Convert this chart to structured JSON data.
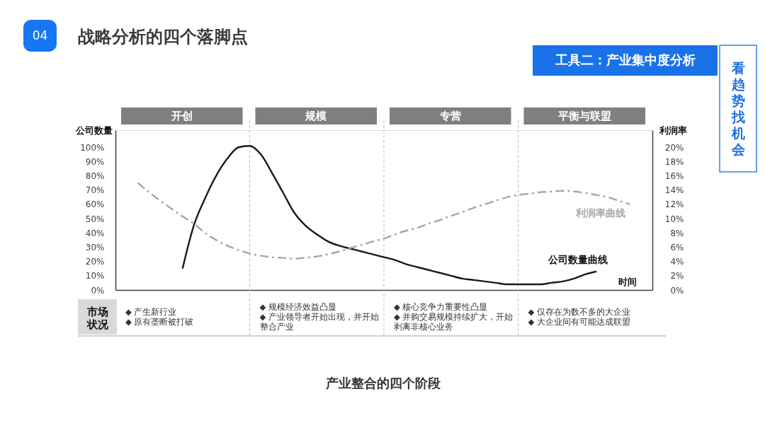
{
  "chart_data": {
    "type": "line",
    "title": "战略分析的四个落脚点",
    "xlabel": "时间",
    "ylabel": "公司数量",
    "y2label": "利润率",
    "grid": "x",
    "categories": [
      null,
      null,
      null,
      null,
      null,
      null,
      null,
      null,
      null,
      null,
      null,
      null,
      null,
      null,
      null,
      null,
      null,
      null,
      null,
      null,
      null,
      null,
      null,
      null,
      null,
      null,
      null,
      null,
      null,
      null,
      null,
      null,
      null,
      null,
      null,
      null,
      null,
      null,
      null,
      null,
      null,
      null,
      null,
      null,
      null,
      null,
      null,
      null,
      null
    ],
    "series": [
      {
        "name": "公司数量曲线",
        "color": "#1a1a1a",
        "values": [
          null,
          null,
          null,
          null,
          null,
          null,
          15,
          45,
          64,
          80,
          92,
          100,
          101,
          95,
          82,
          68,
          54,
          45,
          39,
          34,
          31,
          29,
          27,
          25,
          23,
          21,
          18,
          16,
          14,
          12,
          10,
          8,
          7,
          6,
          5,
          4,
          4,
          4,
          4,
          5,
          6,
          8,
          11,
          13,
          null,
          null,
          null,
          null,
          null
        ]
      },
      {
        "name": "利润率曲线",
        "color": "#a6a6a6",
        "axis": "y2",
        "line_style": "dashed",
        "values": [
          null,
          null,
          15.0,
          13.7,
          12.5,
          11.4,
          10.3,
          9.3,
          8.0,
          7.0,
          6.2,
          5.6,
          5.1,
          4.8,
          4.6,
          4.5,
          4.4,
          4.5,
          4.7,
          5.0,
          5.4,
          5.9,
          6.3,
          6.8,
          7.2,
          7.8,
          8.3,
          8.7,
          9.3,
          9.8,
          10.4,
          10.9,
          11.5,
          12.0,
          12.5,
          13.0,
          13.3,
          13.5,
          13.7,
          13.8,
          13.9,
          13.8,
          13.6,
          13.3,
          13.0,
          12.5,
          12.0,
          null,
          null
        ]
      }
    ],
    "ylim": [
      0,
      112
    ],
    "yticks": [
      {
        "value": 0,
        "label": "0%"
      },
      {
        "value": 10,
        "label": "10%"
      },
      {
        "value": 20,
        "label": "20%"
      },
      {
        "value": 30,
        "label": "30%"
      },
      {
        "value": 40,
        "label": "40%"
      },
      {
        "value": 50,
        "label": "50%"
      },
      {
        "value": 60,
        "label": "60%"
      },
      {
        "value": 70,
        "label": "70%"
      },
      {
        "value": 80,
        "label": "80%"
      },
      {
        "value": 90,
        "label": "90%"
      },
      {
        "value": 100,
        "label": "100%"
      }
    ],
    "y2lim": [
      0,
      22.4
    ],
    "y2ticks": [
      {
        "value": 0,
        "label": "0%"
      },
      {
        "value": 2,
        "label": "2%"
      },
      {
        "value": 4,
        "label": "4%"
      },
      {
        "value": 6,
        "label": "6%"
      },
      {
        "value": 8,
        "label": "8%"
      },
      {
        "value": 10,
        "label": "10%"
      },
      {
        "value": 12,
        "label": "12%"
      },
      {
        "value": 14,
        "label": "14%"
      },
      {
        "value": 16,
        "label": "16%"
      },
      {
        "value": 18,
        "label": "18%"
      },
      {
        "value": 20,
        "label": "20%"
      }
    ],
    "annotations": [
      "04",
      "工具二：产业集中度分析",
      "看趋势找机会",
      "开创",
      "规模",
      "专营",
      "平衡与联盟",
      "市场状况",
      "◆ 产生新行业\n◆ 原有垄断被打破",
      "◆ 规模经济效益凸显\n◆ 产业领导者开始出现，并开始整合产业",
      "◆ 核心竞争力重要性凸显\n◆ 并购交易规模持续扩大，开始剥离非核心业务",
      "◆ 仅存在为数不多的大企业\n◆ 大企业间有可能达成联盟",
      "产业整合的四个阶段"
    ]
  }
}
